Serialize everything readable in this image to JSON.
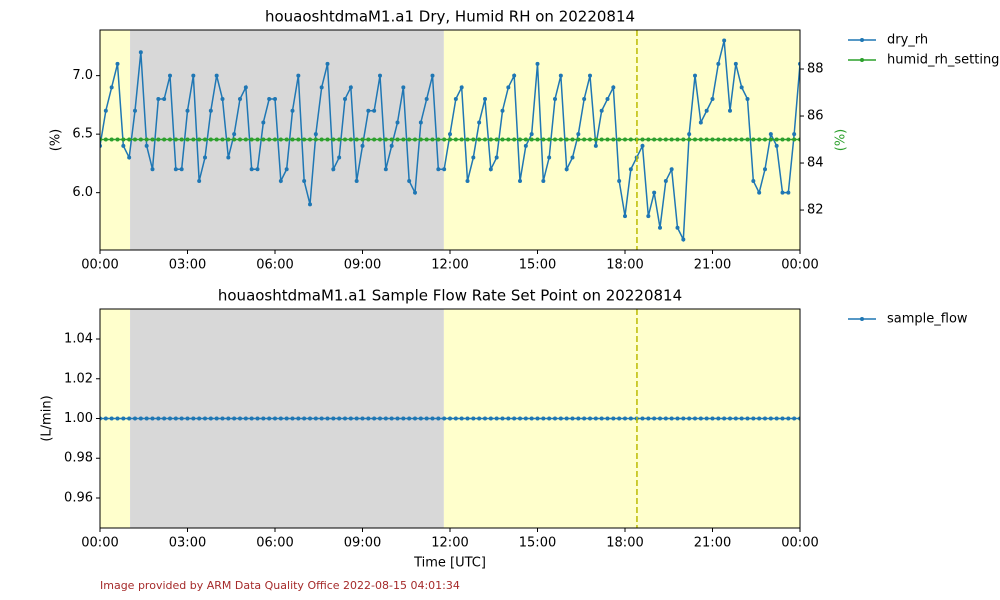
{
  "chart_data": [
    {
      "type": "line",
      "title": "houaoshtdmaM1.a1 Dry, Humid RH on 20220814",
      "ylabel": "(%)",
      "y2label": "(%)",
      "y2label_color": "#2ca02c",
      "x": [
        0,
        0.2,
        0.4,
        0.6,
        0.8,
        1,
        1.2,
        1.4,
        1.6,
        1.8,
        2,
        2.2,
        2.4,
        2.6,
        2.8,
        3,
        3.2,
        3.4,
        3.6,
        3.8,
        4,
        4.2,
        4.4,
        4.6,
        4.8,
        5,
        5.2,
        5.4,
        5.6,
        5.8,
        6,
        6.2,
        6.4,
        6.6,
        6.8,
        7,
        7.2,
        7.4,
        7.6,
        7.8,
        8,
        8.2,
        8.4,
        8.6,
        8.8,
        9,
        9.2,
        9.4,
        9.6,
        9.8,
        10,
        10.2,
        10.4,
        10.6,
        10.8,
        11,
        11.2,
        11.4,
        11.6,
        11.8,
        12,
        12.2,
        12.4,
        12.6,
        12.8,
        13,
        13.2,
        13.4,
        13.6,
        13.8,
        14,
        14.2,
        14.4,
        14.6,
        14.8,
        15,
        15.2,
        15.4,
        15.6,
        15.8,
        16,
        16.2,
        16.4,
        16.6,
        16.8,
        17,
        17.2,
        17.4,
        17.6,
        17.8,
        18,
        18.2,
        18.4,
        18.6,
        18.8,
        19,
        19.2,
        19.4,
        19.6,
        19.8,
        20,
        20.2,
        20.4,
        20.6,
        20.8,
        21,
        21.2,
        21.4,
        21.6,
        21.8,
        22,
        22.2,
        22.4,
        22.6,
        22.8,
        23,
        23.2,
        23.4,
        23.6,
        23.8,
        24
      ],
      "series": [
        {
          "name": "dry_rh",
          "color": "#1f77b4",
          "values": [
            6.4,
            6.7,
            6.9,
            7.1,
            6.4,
            6.3,
            6.7,
            7.2,
            6.4,
            6.2,
            6.8,
            6.8,
            7.0,
            6.2,
            6.2,
            6.7,
            7.0,
            6.1,
            6.3,
            6.7,
            7.0,
            6.8,
            6.3,
            6.5,
            6.8,
            6.9,
            6.2,
            6.2,
            6.6,
            6.8,
            6.8,
            6.1,
            6.2,
            6.7,
            7.0,
            6.1,
            5.9,
            6.5,
            6.9,
            7.1,
            6.2,
            6.3,
            6.8,
            6.9,
            6.1,
            6.4,
            6.7,
            6.7,
            7.0,
            6.2,
            6.4,
            6.6,
            6.9,
            6.1,
            6.0,
            6.6,
            6.8,
            7.0,
            6.2,
            6.2,
            6.5,
            6.8,
            6.9,
            6.1,
            6.3,
            6.6,
            6.8,
            6.2,
            6.3,
            6.7,
            6.9,
            7.0,
            6.1,
            6.4,
            6.5,
            7.1,
            6.1,
            6.3,
            6.8,
            7.0,
            6.2,
            6.3,
            6.5,
            6.8,
            7.0,
            6.4,
            6.7,
            6.8,
            6.9,
            6.1,
            5.8,
            6.2,
            6.3,
            6.4,
            5.8,
            6.0,
            5.7,
            6.1,
            6.2,
            5.7,
            5.6,
            6.5,
            7.0,
            6.6,
            6.7,
            6.8,
            7.1,
            7.3,
            6.7,
            7.1,
            6.9,
            6.8,
            6.1,
            6.0,
            6.2,
            6.5,
            6.4,
            6.0,
            6.0,
            6.5,
            7.1
          ]
        },
        {
          "name": "humid_rh_setting",
          "color": "#2ca02c",
          "axis": "y2",
          "values": [
            85,
            85,
            85,
            85,
            85,
            85,
            85,
            85,
            85,
            85,
            85,
            85,
            85,
            85,
            85,
            85,
            85,
            85,
            85,
            85,
            85,
            85,
            85,
            85,
            85,
            85,
            85,
            85,
            85,
            85,
            85,
            85,
            85,
            85,
            85,
            85,
            85,
            85,
            85,
            85,
            85,
            85,
            85,
            85,
            85,
            85,
            85,
            85,
            85,
            85,
            85,
            85,
            85,
            85,
            85,
            85,
            85,
            85,
            85,
            85,
            85,
            85,
            85,
            85,
            85,
            85,
            85,
            85,
            85,
            85,
            85,
            85,
            85,
            85,
            85,
            85,
            85,
            85,
            85,
            85,
            85,
            85,
            85,
            85,
            85,
            85,
            85,
            85,
            85,
            85,
            85,
            85,
            85,
            85,
            85,
            85,
            85,
            85,
            85,
            85,
            85,
            85,
            85,
            85,
            85,
            85,
            85,
            85,
            85,
            85,
            85,
            85,
            85,
            85,
            85,
            85,
            85,
            85,
            85,
            85,
            85
          ]
        }
      ],
      "xlim": [
        0,
        24
      ],
      "xticks": [
        {
          "value": 0,
          "label": "00:00"
        },
        {
          "value": 3,
          "label": "03:00"
        },
        {
          "value": 6,
          "label": "06:00"
        },
        {
          "value": 9,
          "label": "09:00"
        },
        {
          "value": 12,
          "label": "12:00"
        },
        {
          "value": 15,
          "label": "15:00"
        },
        {
          "value": 18,
          "label": "18:00"
        },
        {
          "value": 21,
          "label": "21:00"
        },
        {
          "value": 24,
          "label": "00:00"
        }
      ],
      "ylim": [
        5.51,
        7.39
      ],
      "yticks": [
        {
          "value": 6,
          "label": "6.0"
        },
        {
          "value": 6.5,
          "label": "6.5"
        },
        {
          "value": 7,
          "label": "7.0"
        }
      ],
      "y2lim": [
        80.3,
        89.66
      ],
      "y2ticks": [
        82,
        84,
        86,
        88
      ],
      "spans": [
        {
          "start": 0,
          "end": 1.03,
          "color": "#ffffcc"
        },
        {
          "start": 1.03,
          "end": 11.79,
          "color": "#d8d8d8"
        },
        {
          "start": 11.79,
          "end": 24,
          "color": "#ffffcc"
        }
      ],
      "vlines": [
        {
          "x": 18.41,
          "color": "#bbbb00"
        }
      ],
      "legend": "outside-right"
    },
    {
      "type": "line",
      "title": "houaoshtdmaM1.a1 Sample Flow Rate Set Point on 20220814",
      "ylabel": "(L/min)",
      "xlabel": "Time [UTC]",
      "x": [
        0,
        0.2,
        0.4,
        0.6,
        0.8,
        1,
        1.2,
        1.4,
        1.6,
        1.8,
        2,
        2.2,
        2.4,
        2.6,
        2.8,
        3,
        3.2,
        3.4,
        3.6,
        3.8,
        4,
        4.2,
        4.4,
        4.6,
        4.8,
        5,
        5.2,
        5.4,
        5.6,
        5.8,
        6,
        6.2,
        6.4,
        6.6,
        6.8,
        7,
        7.2,
        7.4,
        7.6,
        7.8,
        8,
        8.2,
        8.4,
        8.6,
        8.8,
        9,
        9.2,
        9.4,
        9.6,
        9.8,
        10,
        10.2,
        10.4,
        10.6,
        10.8,
        11,
        11.2,
        11.4,
        11.6,
        11.8,
        12,
        12.2,
        12.4,
        12.6,
        12.8,
        13,
        13.2,
        13.4,
        13.6,
        13.8,
        14,
        14.2,
        14.4,
        14.6,
        14.8,
        15,
        15.2,
        15.4,
        15.6,
        15.8,
        16,
        16.2,
        16.4,
        16.6,
        16.8,
        17,
        17.2,
        17.4,
        17.6,
        17.8,
        18,
        18.2,
        18.4,
        18.6,
        18.8,
        19,
        19.2,
        19.4,
        19.6,
        19.8,
        20,
        20.2,
        20.4,
        20.6,
        20.8,
        21,
        21.2,
        21.4,
        21.6,
        21.8,
        22,
        22.2,
        22.4,
        22.6,
        22.8,
        23,
        23.2,
        23.4,
        23.6,
        23.8,
        24
      ],
      "series": [
        {
          "name": "sample_flow",
          "color": "#1f77b4",
          "values": [
            1,
            1,
            1,
            1,
            1,
            1,
            1,
            1,
            1,
            1,
            1,
            1,
            1,
            1,
            1,
            1,
            1,
            1,
            1,
            1,
            1,
            1,
            1,
            1,
            1,
            1,
            1,
            1,
            1,
            1,
            1,
            1,
            1,
            1,
            1,
            1,
            1,
            1,
            1,
            1,
            1,
            1,
            1,
            1,
            1,
            1,
            1,
            1,
            1,
            1,
            1,
            1,
            1,
            1,
            1,
            1,
            1,
            1,
            1,
            1,
            1,
            1,
            1,
            1,
            1,
            1,
            1,
            1,
            1,
            1,
            1,
            1,
            1,
            1,
            1,
            1,
            1,
            1,
            1,
            1,
            1,
            1,
            1,
            1,
            1,
            1,
            1,
            1,
            1,
            1,
            1,
            1,
            1,
            1,
            1,
            1,
            1,
            1,
            1,
            1,
            1,
            1,
            1,
            1,
            1,
            1,
            1,
            1,
            1,
            1,
            1,
            1,
            1,
            1,
            1,
            1,
            1,
            1,
            1,
            1,
            1
          ]
        }
      ],
      "xlim": [
        0,
        24
      ],
      "xticks": [
        {
          "value": 0,
          "label": "00:00"
        },
        {
          "value": 3,
          "label": "03:00"
        },
        {
          "value": 6,
          "label": "06:00"
        },
        {
          "value": 9,
          "label": "09:00"
        },
        {
          "value": 12,
          "label": "12:00"
        },
        {
          "value": 15,
          "label": "15:00"
        },
        {
          "value": 18,
          "label": "18:00"
        },
        {
          "value": 21,
          "label": "21:00"
        },
        {
          "value": 24,
          "label": "00:00"
        }
      ],
      "ylim": [
        0.9449,
        1.0551
      ],
      "yticks": [
        0.96,
        0.98,
        {
          "value": 1,
          "label": "1.00"
        },
        1.02,
        1.04
      ],
      "spans": [
        {
          "start": 0,
          "end": 1.03,
          "color": "#ffffcc"
        },
        {
          "start": 1.03,
          "end": 11.79,
          "color": "#d8d8d8"
        },
        {
          "start": 11.79,
          "end": 24,
          "color": "#ffffcc"
        }
      ],
      "vlines": [
        {
          "x": 18.41,
          "color": "#bbbb00"
        }
      ],
      "legend": "outside-right"
    }
  ],
  "footer": "Image provided by ARM Data Quality Office 2022-08-15 04:01:34"
}
